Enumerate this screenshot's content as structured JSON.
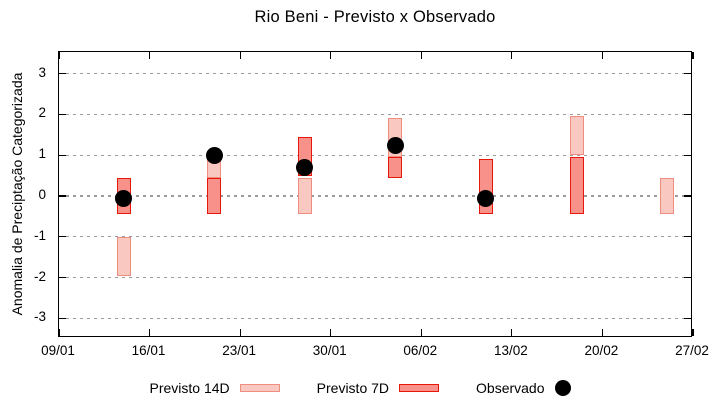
{
  "chart_data": {
    "type": "bar",
    "subtype": "interval-range-bars-with-scatter-overlay",
    "title": "Rio Beni - Previsto x Observado",
    "xlabel": "",
    "ylabel": "Anomalia de Preciptação Categorizada",
    "ylim": [
      -3.5,
      3.55
    ],
    "yticks": [
      3,
      2,
      1,
      0,
      -1,
      -2,
      -3
    ],
    "x_axis_days_span": 49,
    "xticks": [
      {
        "day": 0,
        "label": "09/01"
      },
      {
        "day": 7,
        "label": "16/01"
      },
      {
        "day": 14,
        "label": "23/01"
      },
      {
        "day": 21,
        "label": "30/01"
      },
      {
        "day": 28,
        "label": "06/02"
      },
      {
        "day": 35,
        "label": "13/02"
      },
      {
        "day": 42,
        "label": "20/02"
      },
      {
        "day": 49,
        "label": "27/02"
      }
    ],
    "grid": "horizontal dotted gray lines at integer y values",
    "legend_position": "bottom center, below plot",
    "legend": [
      {
        "label": "Previsto 14D",
        "swatch": "light-pink-box"
      },
      {
        "label": "Previsto 7D",
        "swatch": "red-box"
      },
      {
        "label": "Observado",
        "swatch": "black-dot"
      }
    ],
    "series": [
      {
        "name": "Previsto 14D",
        "type": "vertical range bars",
        "fill": "#f9c8c1",
        "border": "#ef8e7f",
        "intervals": [
          {
            "date": "14/01",
            "day": 5,
            "lo": -1.95,
            "hi": -1.0
          },
          {
            "date": "21/01",
            "day": 12,
            "lo": 0.45,
            "hi": 0.95
          },
          {
            "date": "28/01",
            "day": 19,
            "lo": -0.45,
            "hi": 0.45
          },
          {
            "date": "04/02",
            "day": 26,
            "lo": 0.95,
            "hi": 1.9
          },
          {
            "date": "18/02",
            "day": 40,
            "lo": 1.0,
            "hi": 1.95
          },
          {
            "date": "25/02",
            "day": 47,
            "lo": -0.45,
            "hi": 0.45
          }
        ]
      },
      {
        "name": "Previsto 7D",
        "type": "vertical range bars",
        "fill": "#f8918a",
        "border": "#e8170b",
        "intervals": [
          {
            "date": "14/01",
            "day": 5,
            "lo": -0.45,
            "hi": 0.45
          },
          {
            "date": "21/01",
            "day": 12,
            "lo": -0.45,
            "hi": 0.45
          },
          {
            "date": "28/01",
            "day": 19,
            "lo": 0.5,
            "hi": 1.45
          },
          {
            "date": "04/02",
            "day": 26,
            "lo": 0.45,
            "hi": 0.95
          },
          {
            "date": "11/02",
            "day": 33,
            "lo": -0.45,
            "hi": 0.9
          },
          {
            "date": "18/02",
            "day": 40,
            "lo": -0.45,
            "hi": 0.95
          }
        ]
      },
      {
        "name": "Observado",
        "type": "scatter",
        "color": "#000000",
        "points": [
          {
            "date": "14/01",
            "day": 5,
            "value": -0.05
          },
          {
            "date": "21/01",
            "day": 12,
            "value": 1.0
          },
          {
            "date": "28/01",
            "day": 19,
            "value": 0.7
          },
          {
            "date": "04/02",
            "day": 26,
            "value": 1.25
          },
          {
            "date": "11/02",
            "day": 33,
            "value": -0.05
          }
        ]
      }
    ],
    "colors": {
      "previsto_14d_fill": "#f9c8c1",
      "previsto_14d_border": "#ef8e7f",
      "previsto_7d_fill": "#f8918a",
      "previsto_7d_border": "#e8170b",
      "observado": "#000000",
      "gridline": "#9b9b9b",
      "axis": "#000000",
      "background": "#ffffff"
    }
  }
}
